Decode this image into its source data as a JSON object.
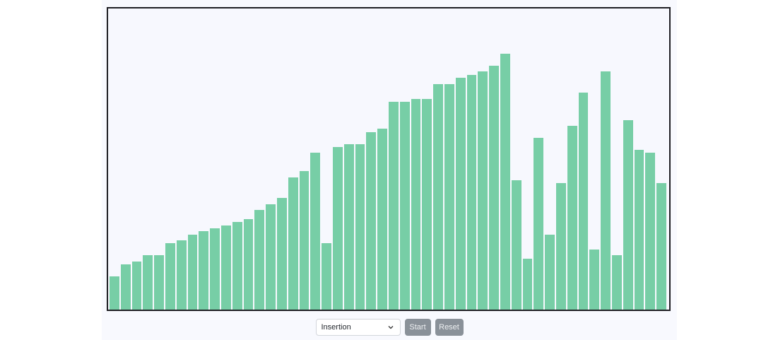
{
  "controls": {
    "algorithm_selected": "Insertion",
    "start_label": "Start",
    "reset_label": "Reset"
  },
  "colors": {
    "bar": "#77cea6",
    "button": "#8a9199",
    "panel": "#f7f8fe",
    "border": "#1f1f24"
  },
  "chart_data": {
    "type": "bar",
    "ylim": [
      0,
      100
    ],
    "values": [
      11,
      15,
      16,
      18,
      18,
      22,
      23,
      25,
      26,
      27,
      28,
      29,
      30,
      33,
      35,
      37,
      44,
      46,
      52,
      22,
      54,
      55,
      55,
      59,
      60,
      69,
      69,
      70,
      70,
      75,
      75,
      77,
      78,
      79,
      81,
      85,
      43,
      17,
      57,
      25,
      42,
      61,
      72,
      20,
      79,
      18,
      63,
      53,
      52,
      42
    ]
  }
}
